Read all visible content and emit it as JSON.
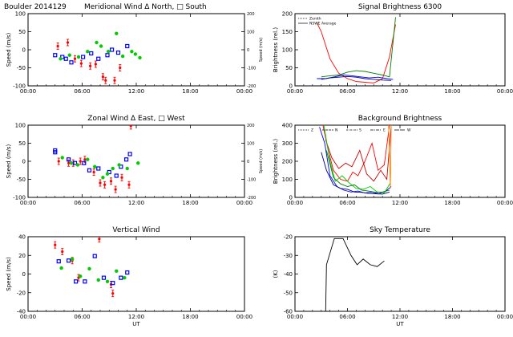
{
  "chart_data": [
    {
      "id": "meridional",
      "type": "scatter",
      "title_left": "Boulder   2014129",
      "title": "Meridional Wind   Δ North, □ South",
      "ylabel": "Speed (m/s)",
      "ylabel_right": "Speed (m/s)",
      "xlim": [
        0,
        24
      ],
      "ylim": [
        -100,
        100
      ],
      "yticks": [
        "100",
        "50",
        "0",
        "-50",
        "-100"
      ],
      "yticks_right": [
        "200",
        "100",
        "0",
        "-100",
        "-200"
      ],
      "xticks": [
        "00:00",
        "06:00",
        "12:00",
        "18:00",
        "00:00"
      ],
      "series": [
        {
          "color": "#ff0000",
          "marker": "errbar",
          "points": [
            [
              3.3,
              10
            ],
            [
              4.4,
              20
            ],
            [
              5.2,
              -25
            ],
            [
              5.9,
              -38
            ],
            [
              6.9,
              -45
            ],
            [
              7.5,
              -40
            ],
            [
              8.3,
              -75
            ],
            [
              8.6,
              -85
            ],
            [
              9.6,
              -85
            ],
            [
              10.2,
              -50
            ]
          ]
        },
        {
          "color": "#0000ff",
          "marker": "square",
          "points": [
            [
              3.0,
              -15
            ],
            [
              3.8,
              -20
            ],
            [
              4.2,
              -25
            ],
            [
              4.8,
              -35
            ],
            [
              6.1,
              -20
            ],
            [
              7.0,
              -10
            ],
            [
              7.8,
              -25
            ],
            [
              8.8,
              -15
            ],
            [
              9.3,
              0
            ],
            [
              10.0,
              -8
            ],
            [
              11.0,
              10
            ]
          ]
        },
        {
          "color": "#00cc00",
          "marker": "dot",
          "points": [
            [
              3.6,
              -25
            ],
            [
              4.6,
              -15
            ],
            [
              5.6,
              -20
            ],
            [
              6.6,
              -5
            ],
            [
              7.6,
              20
            ],
            [
              8.1,
              10
            ],
            [
              8.9,
              -5
            ],
            [
              9.8,
              45
            ],
            [
              10.5,
              -18
            ],
            [
              11.5,
              -5
            ],
            [
              11.9,
              -12
            ],
            [
              12.4,
              -22
            ]
          ]
        }
      ]
    },
    {
      "id": "signal",
      "type": "line",
      "title": "Signal Brightness          6300",
      "ylabel": "Brightness (rel.)",
      "xlim": [
        0,
        24
      ],
      "ylim": [
        0,
        200
      ],
      "yticks": [
        "200",
        "150",
        "100",
        "50",
        "0"
      ],
      "xticks": [
        "00:00",
        "06:00",
        "12:00",
        "18:00",
        "00:00"
      ],
      "legend": [
        "Zenith",
        "NSWE Average"
      ],
      "series": [
        {
          "color": "#ff0000",
          "points": [
            [
              2.5,
              175
            ],
            [
              3,
              150
            ],
            [
              4,
              75
            ],
            [
              5,
              35
            ],
            [
              6,
              20
            ],
            [
              7,
              12
            ],
            [
              8,
              10
            ],
            [
              9,
              8
            ],
            [
              10,
              20
            ],
            [
              10.8,
              80
            ],
            [
              11.5,
              170
            ]
          ]
        },
        {
          "color": "#008000",
          "points": [
            [
              3,
              25
            ],
            [
              4,
              28
            ],
            [
              5,
              30
            ],
            [
              6,
              38
            ],
            [
              7,
              42
            ],
            [
              8,
              40
            ],
            [
              9,
              35
            ],
            [
              10,
              30
            ],
            [
              10.8,
              25
            ],
            [
              11.5,
              190
            ]
          ]
        },
        {
          "color": "#0000ff",
          "points": [
            [
              2.5,
              20
            ],
            [
              3.5,
              20
            ],
            [
              4.5,
              25
            ],
            [
              5.5,
              30
            ],
            [
              6.5,
              28
            ],
            [
              7.5,
              25
            ],
            [
              8.5,
              22
            ],
            [
              9.5,
              24
            ],
            [
              10.5,
              20
            ],
            [
              11.2,
              18
            ]
          ]
        },
        {
          "color": "#000080",
          "points": [
            [
              3,
              18
            ],
            [
              4,
              22
            ],
            [
              5,
              24
            ],
            [
              6,
              26
            ],
            [
              7,
              24
            ],
            [
              8,
              20
            ],
            [
              9,
              18
            ],
            [
              10,
              16
            ],
            [
              11,
              15
            ]
          ]
        }
      ]
    },
    {
      "id": "zonal",
      "type": "scatter",
      "title": "Zonal Wind       Δ East, □ West",
      "ylabel": "Speed (m/s)",
      "ylabel_right": "Speed (m/s)",
      "xlim": [
        0,
        24
      ],
      "ylim": [
        -100,
        100
      ],
      "yticks": [
        "100",
        "50",
        "0",
        "-50",
        "-100"
      ],
      "yticks_right": [
        "200",
        "100",
        "0",
        "-100",
        "-200"
      ],
      "xticks": [
        "00:00",
        "06:00",
        "12:00",
        "18:00",
        "00:00"
      ],
      "series": [
        {
          "color": "#ff0000",
          "marker": "errbar",
          "points": [
            [
              3.4,
              0
            ],
            [
              4.5,
              -5
            ],
            [
              5.0,
              -5
            ],
            [
              5.8,
              0
            ],
            [
              6.3,
              5
            ],
            [
              7.3,
              -30
            ],
            [
              8.0,
              -60
            ],
            [
              8.5,
              -65
            ],
            [
              9.2,
              -55
            ],
            [
              9.7,
              -78
            ],
            [
              10.4,
              -45
            ],
            [
              11.4,
              98
            ],
            [
              11.2,
              -65
            ]
          ]
        },
        {
          "color": "#0000ff",
          "marker": "square",
          "points": [
            [
              3.0,
              30
            ],
            [
              3.0,
              25
            ],
            [
              4.5,
              5
            ],
            [
              5.2,
              -5
            ],
            [
              6.2,
              -5
            ],
            [
              6.8,
              -25
            ],
            [
              7.8,
              -20
            ],
            [
              9.0,
              -30
            ],
            [
              9.8,
              -40
            ],
            [
              10.3,
              -15
            ],
            [
              10.9,
              5
            ],
            [
              11.3,
              20
            ]
          ]
        },
        {
          "color": "#00cc00",
          "marker": "dot",
          "points": [
            [
              3.8,
              10
            ],
            [
              4.8,
              -5
            ],
            [
              5.5,
              -10
            ],
            [
              6.6,
              5
            ],
            [
              7.4,
              -15
            ],
            [
              8.3,
              -45
            ],
            [
              8.8,
              -35
            ],
            [
              9.4,
              -20
            ],
            [
              10.1,
              -10
            ],
            [
              11.0,
              -20
            ],
            [
              12.2,
              -5
            ]
          ]
        }
      ]
    },
    {
      "id": "background",
      "type": "line",
      "title": "Background Brightness",
      "ylabel": "Brightness (rel.)",
      "xlim": [
        0,
        24
      ],
      "ylim": [
        0,
        400
      ],
      "yticks": [
        "400",
        "300",
        "200",
        "100",
        "0"
      ],
      "xticks": [
        "00:00",
        "06:00",
        "12:00",
        "18:00",
        "00:00"
      ],
      "legend": [
        "Z",
        "N",
        "S",
        "E",
        "W"
      ],
      "series": [
        {
          "color": "#ff0000",
          "points": [
            [
              3.2,
              400
            ],
            [
              3.8,
              260
            ],
            [
              4.4,
              150
            ],
            [
              5.2,
              100
            ],
            [
              6.0,
              90
            ],
            [
              6.6,
              140
            ],
            [
              7.2,
              120
            ],
            [
              8.0,
              200
            ],
            [
              8.8,
              300
            ],
            [
              9.5,
              150
            ],
            [
              10.2,
              180
            ],
            [
              10.8,
              400
            ]
          ]
        },
        {
          "color": "#cc0000",
          "points": [
            [
              3.5,
              320
            ],
            [
              4.2,
              220
            ],
            [
              5.0,
              160
            ],
            [
              5.8,
              190
            ],
            [
              6.5,
              170
            ],
            [
              7.4,
              260
            ],
            [
              8.2,
              130
            ],
            [
              9.0,
              90
            ],
            [
              9.8,
              150
            ],
            [
              10.5,
              100
            ],
            [
              11.0,
              400
            ]
          ]
        },
        {
          "color": "#0000ff",
          "points": [
            [
              2.8,
              390
            ],
            [
              3.4,
              300
            ],
            [
              4.0,
              120
            ],
            [
              4.8,
              60
            ],
            [
              5.6,
              40
            ],
            [
              6.4,
              30
            ],
            [
              7.2,
              35
            ],
            [
              8.0,
              25
            ],
            [
              8.8,
              30
            ],
            [
              9.6,
              20
            ],
            [
              10.4,
              35
            ],
            [
              11.0,
              60
            ]
          ]
        },
        {
          "color": "#000080",
          "points": [
            [
              3.0,
              250
            ],
            [
              3.6,
              150
            ],
            [
              4.4,
              70
            ],
            [
              5.2,
              50
            ],
            [
              6.0,
              45
            ],
            [
              6.8,
              30
            ],
            [
              7.6,
              28
            ],
            [
              8.4,
              22
            ],
            [
              9.2,
              20
            ],
            [
              10.0,
              18
            ],
            [
              10.8,
              30
            ]
          ]
        },
        {
          "color": "#00cc00",
          "points": [
            [
              3.3,
              400
            ],
            [
              4.0,
              200
            ],
            [
              4.6,
              90
            ],
            [
              5.4,
              120
            ],
            [
              6.2,
              80
            ],
            [
              7.0,
              50
            ],
            [
              7.8,
              45
            ],
            [
              8.6,
              60
            ],
            [
              9.4,
              30
            ],
            [
              10.2,
              25
            ],
            [
              10.9,
              80
            ]
          ]
        },
        {
          "color": "#008000",
          "points": [
            [
              3.6,
              260
            ],
            [
              4.4,
              110
            ],
            [
              5.2,
              75
            ],
            [
              6.0,
              60
            ],
            [
              6.8,
              70
            ],
            [
              7.6,
              40
            ],
            [
              8.4,
              35
            ],
            [
              9.2,
              28
            ],
            [
              10.0,
              30
            ],
            [
              10.8,
              40
            ]
          ]
        },
        {
          "color": "#ff8000",
          "points": [
            [
              10.7,
              400
            ],
            [
              10.9,
              50
            ],
            [
              11.0,
              400
            ]
          ]
        }
      ]
    },
    {
      "id": "vertical",
      "type": "scatter",
      "title": "Vertical Wind",
      "ylabel": "Speed (m/s)",
      "xlabel": "UT",
      "xlim": [
        0,
        24
      ],
      "ylim": [
        -50,
        50
      ],
      "yticks": [
        "40",
        "20",
        "0",
        "-20",
        "-40"
      ],
      "xticks": [
        "00:00",
        "06:00",
        "12:00",
        "18:00",
        "00:00"
      ],
      "series": [
        {
          "color": "#ff0000",
          "marker": "errbar",
          "points": [
            [
              3.0,
              39
            ],
            [
              3.8,
              30
            ],
            [
              4.9,
              18
            ],
            [
              5.6,
              -5
            ],
            [
              7.9,
              47
            ],
            [
              9.2,
              -14
            ],
            [
              9.4,
              -26
            ]
          ]
        },
        {
          "color": "#0000ff",
          "marker": "square",
          "points": [
            [
              3.4,
              17
            ],
            [
              4.5,
              18
            ],
            [
              5.3,
              -10
            ],
            [
              6.3,
              -10
            ],
            [
              7.4,
              24
            ],
            [
              8.4,
              -5
            ],
            [
              9.4,
              -12
            ],
            [
              10.3,
              -5
            ],
            [
              11.0,
              2
            ]
          ]
        },
        {
          "color": "#00cc00",
          "marker": "dot",
          "points": [
            [
              3.7,
              8
            ],
            [
              4.9,
              20
            ],
            [
              5.8,
              -3
            ],
            [
              6.8,
              7
            ],
            [
              7.8,
              -8
            ],
            [
              8.8,
              -10
            ],
            [
              9.8,
              4
            ],
            [
              10.7,
              -5
            ]
          ]
        }
      ]
    },
    {
      "id": "skytemp",
      "type": "line",
      "title": "Sky Temperature",
      "ylabel": "(K)",
      "xlabel": "UT",
      "xlim": [
        0,
        24
      ],
      "ylim": [
        -60,
        -20
      ],
      "yticks": [
        "-20",
        "-30",
        "-40",
        "-50",
        "-60"
      ],
      "xticks": [
        "00:00",
        "06:00",
        "12:00",
        "18:00",
        "00:00"
      ],
      "series": [
        {
          "color": "#000000",
          "points": [
            [
              3.5,
              -62
            ],
            [
              3.6,
              -35
            ],
            [
              4.5,
              -21
            ],
            [
              5.5,
              -21
            ],
            [
              6.4,
              -30
            ],
            [
              7.1,
              -35
            ],
            [
              7.8,
              -32
            ],
            [
              8.6,
              -35
            ],
            [
              9.4,
              -36
            ],
            [
              10.2,
              -33
            ]
          ]
        }
      ]
    }
  ]
}
